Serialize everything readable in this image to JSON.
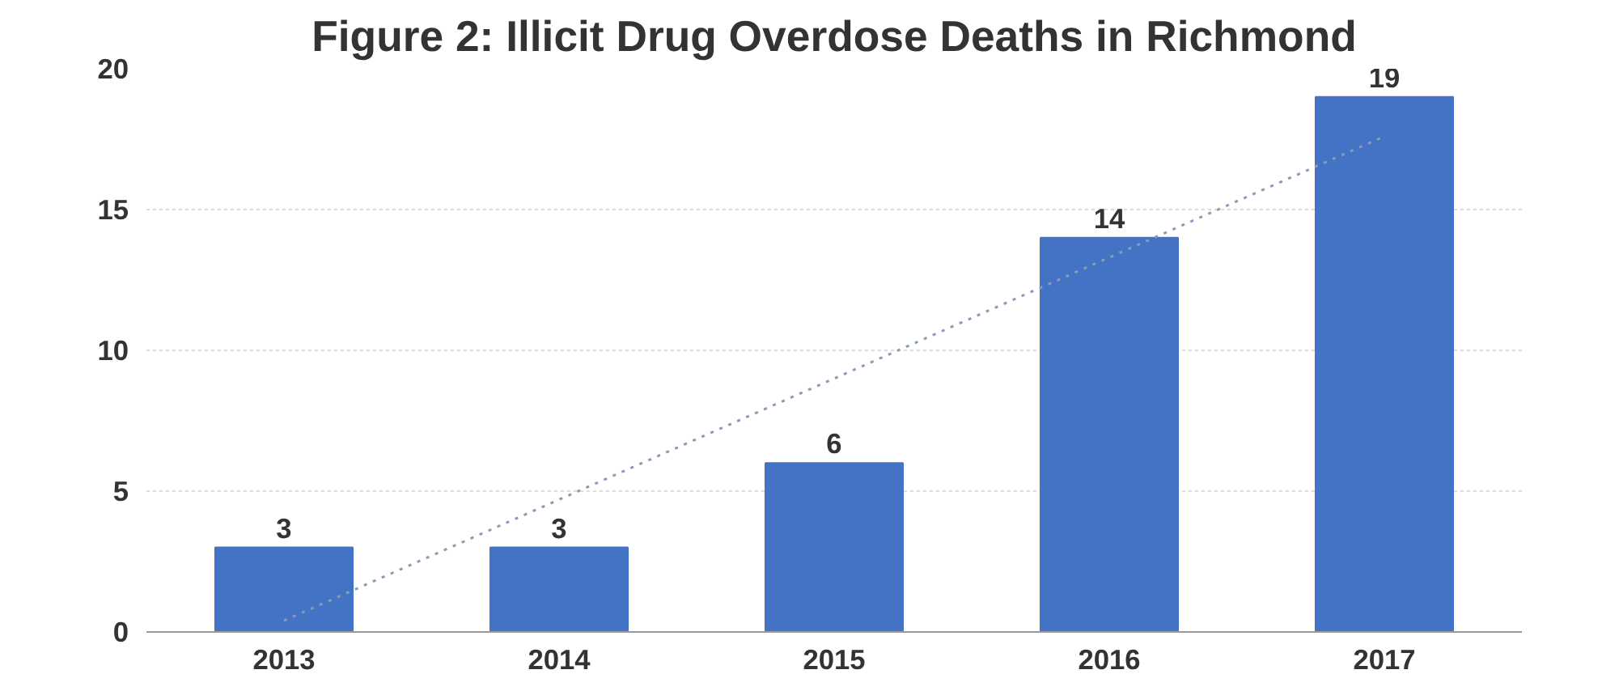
{
  "chart_data": {
    "type": "bar",
    "title": "Figure 2: Illicit Drug Overdose Deaths in Richmond",
    "categories": [
      "2013",
      "2014",
      "2015",
      "2016",
      "2017"
    ],
    "series": [
      {
        "color": "#4472c4",
        "values": [
          3,
          3,
          6,
          14,
          19
        ],
        "value_labels": [
          "3",
          "3",
          "6",
          "14",
          "19"
        ]
      },
      {
        "type": "line",
        "color": "#8a9bb8",
        "values": [
          0.4,
          4.7,
          9,
          13.3,
          17.6
        ],
        "line_style": "dotted"
      }
    ],
    "ylim": [
      0,
      20
    ],
    "yticks": [
      0,
      5,
      10,
      15,
      20
    ],
    "grid": "y"
  }
}
